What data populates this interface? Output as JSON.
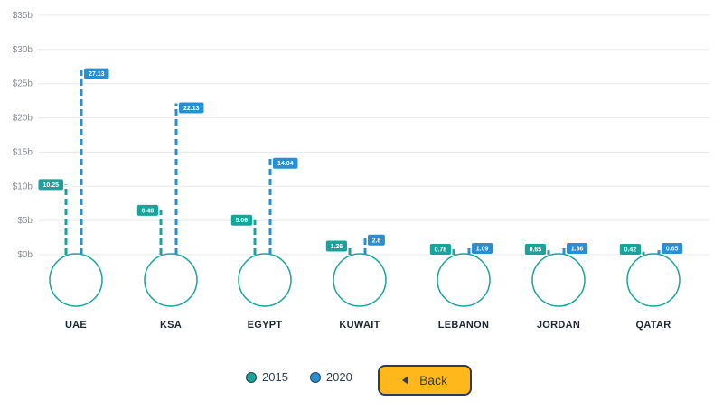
{
  "chart_data": {
    "type": "bar",
    "title": "",
    "xlabel": "",
    "ylabel": "",
    "ylim": [
      0,
      35
    ],
    "y_ticks": [
      0,
      5,
      10,
      15,
      20,
      25,
      30,
      35
    ],
    "y_tick_labels": [
      "$0b",
      "$5b",
      "$10b",
      "$15b",
      "$20b",
      "$25b",
      "$30b",
      "$35b"
    ],
    "categories": [
      "UAE",
      "KSA",
      "EGYPT",
      "KUWAIT",
      "LEBANON",
      "JORDAN",
      "QATAR"
    ],
    "icons": [
      "burj-khalifa-icon",
      "kingdom-centre-icon",
      "pyramids-icon",
      "kuwait-towers-icon",
      "cedar-tree-icon",
      "jerash-columns-icon",
      "aspire-tower-icon"
    ],
    "series": [
      {
        "name": "2015",
        "color": "#1aa39a",
        "values": [
          10.25,
          6.48,
          5.06,
          1.26,
          0.78,
          0.65,
          0.42
        ]
      },
      {
        "name": "2020",
        "color": "#2a8fd1",
        "values": [
          27.13,
          22.13,
          14.04,
          2.8,
          1.09,
          1.36,
          0.65
        ]
      }
    ],
    "grid": true,
    "legend_position": "bottom"
  },
  "legend": [
    {
      "label": "2015",
      "color": "#1aa39a"
    },
    {
      "label": "2020",
      "color": "#2a8fd1"
    }
  ],
  "back_button": {
    "label": "Back"
  }
}
